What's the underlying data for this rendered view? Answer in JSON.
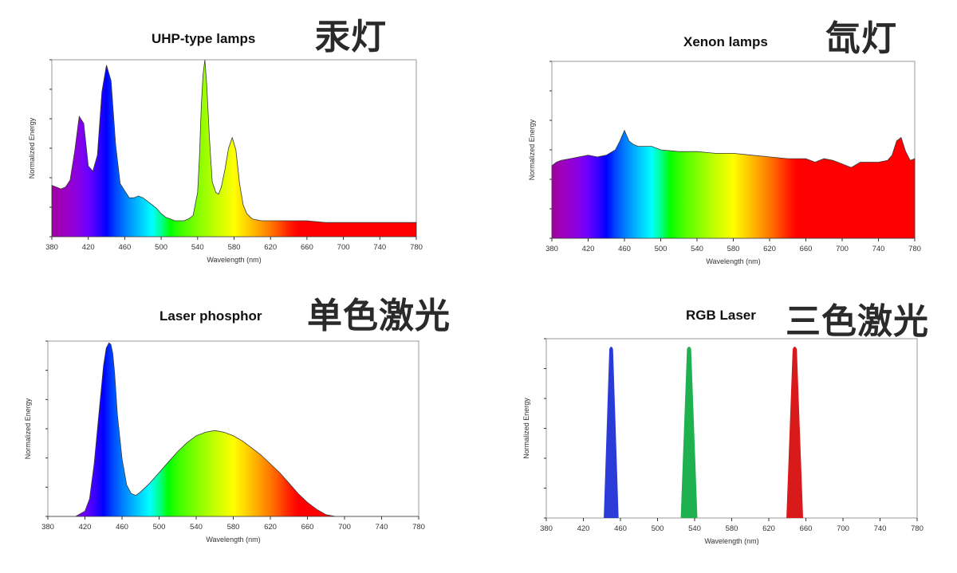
{
  "chart_data": [
    {
      "id": "uhp",
      "type": "area",
      "title": "UHP-type lamps",
      "label_cn": "汞灯",
      "xlabel": "Wavelength (nm)",
      "ylabel": "Normalized Energy",
      "xlim": [
        380,
        780
      ],
      "ylim": [
        0,
        1
      ],
      "xticks": [
        "380",
        "420",
        "460",
        "500",
        "540",
        "580",
        "620",
        "660",
        "700",
        "740",
        "780"
      ],
      "x": [
        380,
        385,
        390,
        395,
        400,
        405,
        410,
        415,
        420,
        425,
        430,
        435,
        440,
        445,
        450,
        455,
        460,
        465,
        470,
        475,
        480,
        485,
        490,
        495,
        500,
        505,
        510,
        515,
        520,
        525,
        530,
        535,
        540,
        542,
        544,
        546,
        548,
        550,
        553,
        556,
        560,
        563,
        566,
        570,
        574,
        578,
        582,
        586,
        590,
        594,
        600,
        610,
        620,
        640,
        660,
        680,
        700,
        720,
        740,
        760,
        780
      ],
      "y": [
        0.29,
        0.28,
        0.27,
        0.28,
        0.32,
        0.48,
        0.68,
        0.64,
        0.4,
        0.37,
        0.46,
        0.82,
        0.97,
        0.88,
        0.52,
        0.3,
        0.26,
        0.22,
        0.22,
        0.23,
        0.22,
        0.2,
        0.18,
        0.16,
        0.13,
        0.11,
        0.1,
        0.09,
        0.09,
        0.09,
        0.1,
        0.12,
        0.25,
        0.45,
        0.74,
        0.92,
        1.0,
        0.86,
        0.55,
        0.31,
        0.25,
        0.24,
        0.28,
        0.38,
        0.5,
        0.56,
        0.49,
        0.3,
        0.18,
        0.13,
        0.1,
        0.09,
        0.09,
        0.09,
        0.09,
        0.08,
        0.08,
        0.08,
        0.08,
        0.08,
        0.08
      ]
    },
    {
      "id": "xenon",
      "type": "area",
      "title": "Xenon lamps",
      "label_cn": "氙灯",
      "xlabel": "Wavelength (nm)",
      "ylabel": "Normalized Energy",
      "xlim": [
        380,
        780
      ],
      "ylim": [
        0,
        1
      ],
      "xticks": [
        "380",
        "420",
        "460",
        "500",
        "540",
        "580",
        "620",
        "660",
        "700",
        "740",
        "780"
      ],
      "x": [
        380,
        385,
        390,
        400,
        410,
        420,
        430,
        440,
        450,
        455,
        460,
        465,
        470,
        475,
        480,
        490,
        500,
        520,
        540,
        560,
        580,
        600,
        620,
        640,
        660,
        670,
        680,
        690,
        700,
        710,
        720,
        740,
        750,
        755,
        760,
        765,
        770,
        775,
        780
      ],
      "y": [
        0.41,
        0.43,
        0.44,
        0.45,
        0.46,
        0.47,
        0.46,
        0.47,
        0.5,
        0.55,
        0.61,
        0.55,
        0.53,
        0.52,
        0.52,
        0.52,
        0.5,
        0.49,
        0.49,
        0.48,
        0.48,
        0.47,
        0.46,
        0.45,
        0.45,
        0.43,
        0.45,
        0.44,
        0.42,
        0.4,
        0.43,
        0.43,
        0.44,
        0.47,
        0.55,
        0.57,
        0.49,
        0.44,
        0.45
      ]
    },
    {
      "id": "laser-phosphor",
      "type": "area",
      "title": "Laser phosphor",
      "label_cn": "单色激光",
      "xlabel": "Wavelength (nm)",
      "ylabel": "Normalized Energy",
      "xlim": [
        380,
        780
      ],
      "ylim": [
        0,
        1
      ],
      "xticks": [
        "380",
        "420",
        "460",
        "500",
        "540",
        "580",
        "620",
        "660",
        "700",
        "740",
        "780"
      ],
      "x": [
        380,
        410,
        420,
        425,
        430,
        435,
        440,
        443,
        446,
        448,
        450,
        452,
        455,
        460,
        465,
        470,
        475,
        480,
        490,
        500,
        510,
        520,
        530,
        540,
        550,
        560,
        570,
        580,
        590,
        600,
        610,
        620,
        630,
        640,
        650,
        660,
        670,
        680,
        690,
        700,
        780
      ],
      "y": [
        0,
        0,
        0.03,
        0.1,
        0.3,
        0.58,
        0.86,
        0.96,
        0.99,
        0.98,
        0.93,
        0.82,
        0.58,
        0.33,
        0.18,
        0.13,
        0.12,
        0.14,
        0.19,
        0.25,
        0.31,
        0.37,
        0.42,
        0.46,
        0.48,
        0.49,
        0.48,
        0.46,
        0.43,
        0.39,
        0.35,
        0.3,
        0.25,
        0.19,
        0.13,
        0.08,
        0.04,
        0.01,
        0,
        0,
        0
      ]
    },
    {
      "id": "rgb-laser",
      "type": "area",
      "title": "RGB Laser",
      "label_cn": "三色激光",
      "xlabel": "Wavelength (nm)",
      "ylabel": "Normalized Energy",
      "xlim": [
        380,
        780
      ],
      "ylim": [
        0,
        1
      ],
      "xticks": [
        "380",
        "420",
        "460",
        "500",
        "540",
        "580",
        "620",
        "660",
        "700",
        "740",
        "780"
      ],
      "peaks": [
        {
          "center": 450,
          "width": 16,
          "color": "#2a3bd8"
        },
        {
          "center": 534,
          "width": 18,
          "color": "#1fb050"
        },
        {
          "center": 648,
          "width": 18,
          "color": "#d81a1a"
        }
      ]
    }
  ]
}
